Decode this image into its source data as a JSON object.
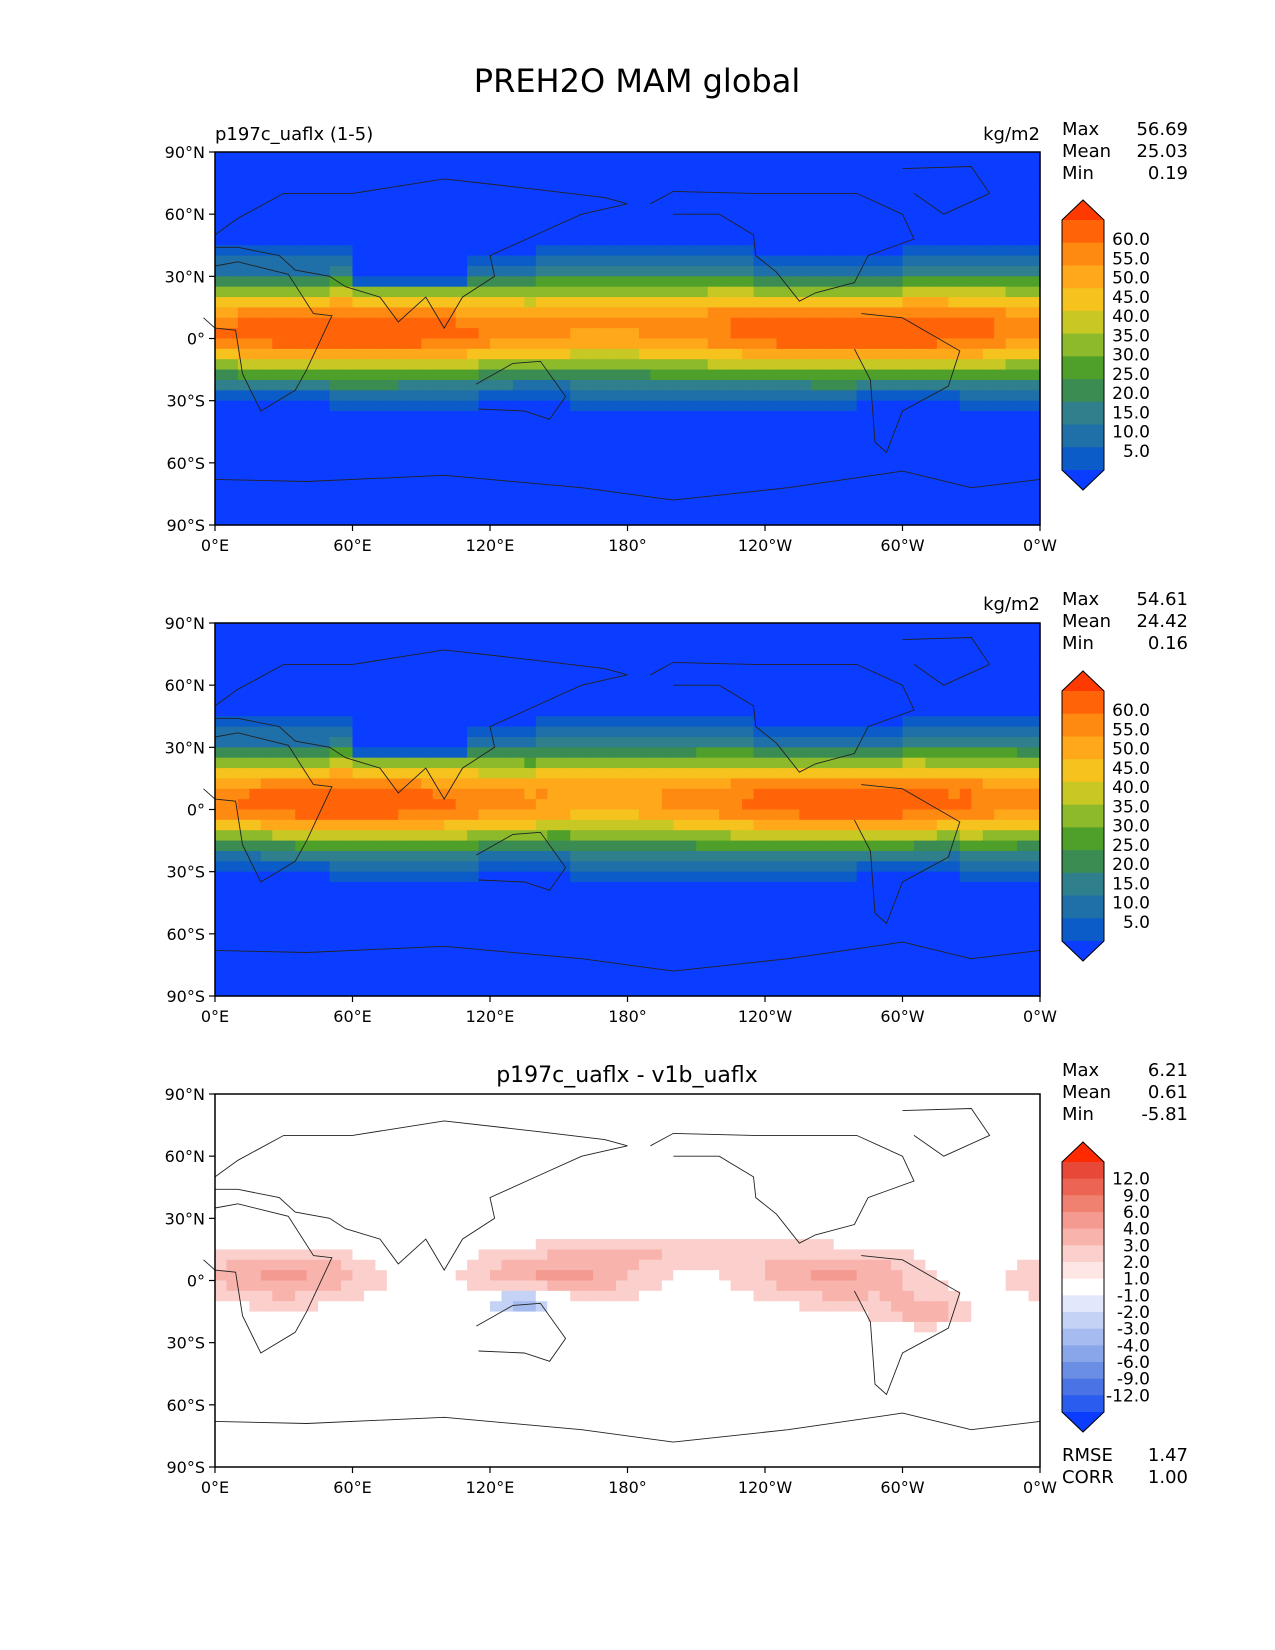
{
  "title": "PREH2O MAM global",
  "x_ticks": [
    "0°E",
    "60°E",
    "120°E",
    "180°",
    "120°W",
    "60°W",
    "0°W"
  ],
  "y_ticks": [
    "90°N",
    "60°N",
    "30°N",
    "0°",
    "30°S",
    "60°S",
    "90°S"
  ],
  "stat_labels": {
    "max": "Max",
    "mean": "Mean",
    "min": "Min",
    "rmse": "RMSE",
    "corr": "CORR"
  },
  "colors": {
    "field_levels": [
      "#0a3dff",
      "#0b5cc8",
      "#1f6fa8",
      "#2f7f8c",
      "#3a8c52",
      "#4fa02a",
      "#8cba2a",
      "#c8c824",
      "#f5c21e",
      "#ffa81a",
      "#ff8a12",
      "#ff6408",
      "#ff3a00"
    ],
    "diff_levels": [
      "#0a3dff",
      "#2a5cf0",
      "#4a74e6",
      "#6a8ee4",
      "#8aa6ea",
      "#a6bcf0",
      "#c4d2f6",
      "#e2e8fb",
      "#ffffff",
      "#fde6e4",
      "#fbd0cc",
      "#f8b4ac",
      "#f49a90",
      "#f08070",
      "#ec6454",
      "#e84838",
      "#ff2a00"
    ]
  },
  "chart_data": [
    {
      "type": "heatmap",
      "title": "p197c_uaflx (1-5)",
      "units": "kg/m2",
      "stats": {
        "max": "56.69",
        "mean": "25.03",
        "min": "0.19"
      },
      "xlim": [
        0,
        360
      ],
      "ylim": [
        -90,
        90
      ],
      "colorbar_ticks": [
        "60.0",
        "55.0",
        "50.0",
        "45.0",
        "40.0",
        "35.0",
        "30.0",
        "25.0",
        "20.0",
        "15.0",
        "10.0",
        "5.0"
      ]
    },
    {
      "type": "heatmap",
      "title": "",
      "units": "kg/m2",
      "stats": {
        "max": "54.61",
        "mean": "24.42",
        "min": "0.16"
      },
      "xlim": [
        0,
        360
      ],
      "ylim": [
        -90,
        90
      ],
      "colorbar_ticks": [
        "60.0",
        "55.0",
        "50.0",
        "45.0",
        "40.0",
        "35.0",
        "30.0",
        "25.0",
        "20.0",
        "15.0",
        "10.0",
        "5.0"
      ]
    },
    {
      "type": "heatmap",
      "title": "p197c_uaflx - v1b_uaflx",
      "units": "",
      "stats": {
        "max": "6.21",
        "mean": "0.61",
        "min": "-5.81",
        "rmse": "1.47",
        "corr": "1.00"
      },
      "xlim": [
        0,
        360
      ],
      "ylim": [
        -90,
        90
      ],
      "colorbar_ticks": [
        "12.0",
        "9.0",
        "6.0",
        "4.0",
        "3.0",
        "2.0",
        "1.0",
        "-1.0",
        "-2.0",
        "-3.0",
        "-4.0",
        "-6.0",
        "-9.0",
        "-12.0"
      ]
    }
  ]
}
